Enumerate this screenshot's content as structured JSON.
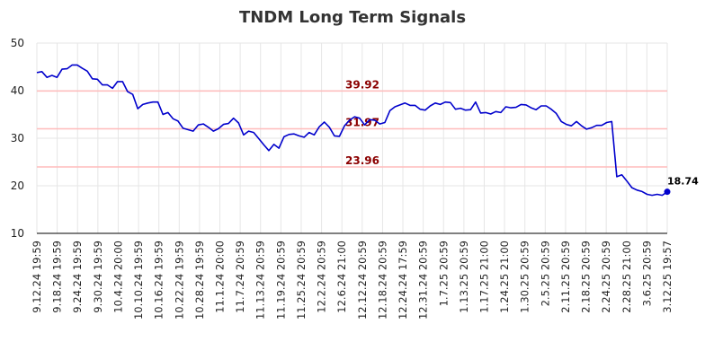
{
  "chart_data": {
    "type": "line",
    "title": "TNDM Long Term Signals",
    "xlabel": "",
    "ylabel": "",
    "ylim": [
      10,
      50
    ],
    "yticks": [
      10,
      20,
      30,
      40,
      50
    ],
    "grid": true,
    "xtick_labels": [
      "9.12.24 19:59",
      "9.18.24 19:59",
      "9.24.24 19:59",
      "9.30.24 19:59",
      "10.4.24 20:00",
      "10.10.24 19:59",
      "10.16.24 19:59",
      "10.22.24 19:59",
      "10.28.24 19:59",
      "11.1.24 20:00",
      "11.7.24 20:59",
      "11.13.24 20:59",
      "11.19.24 20:59",
      "11.25.24 20:59",
      "12.2.24 20:59",
      "12.6.24 21:00",
      "12.12.24 20:59",
      "12.18.24 20:59",
      "12.24.24 17:59",
      "12.31.24 20:59",
      "1.7.25 20:59",
      "1.13.25 20:59",
      "1.17.25 21:00",
      "1.24.25 21:00",
      "1.30.25 20:59",
      "2.5.25 20:59",
      "2.11.25 20:59",
      "2.18.25 20:59",
      "2.24.25 20:59",
      "2.28.25 21:00",
      "3.6.25 20:59",
      "3.12.25 19:57"
    ],
    "colors": {
      "line": "#0000cc",
      "signal_line": "#ffbbbb",
      "signal_text": "#8b0000",
      "grid": "#e6e6e6"
    },
    "signal_lines": [
      {
        "value": 39.92,
        "label": "39.92"
      },
      {
        "value": 31.97,
        "label": "31.97"
      },
      {
        "value": 23.96,
        "label": "23.96"
      }
    ],
    "last_value_label": "18.74",
    "series": [
      {
        "values": [
          43.8,
          44.0,
          42.8,
          43.2,
          42.8,
          44.5,
          44.6,
          45.4,
          45.4,
          44.7,
          44.1,
          42.5,
          42.4,
          41.2,
          41.2,
          40.5,
          41.9,
          41.9,
          39.8,
          39.2,
          36.2,
          37.1,
          37.4,
          37.6,
          37.6,
          35.0,
          35.4,
          34.1,
          33.6,
          32.1,
          31.8,
          31.5,
          32.8,
          33.0,
          32.3,
          31.5,
          32.0,
          32.9,
          33.1,
          34.2,
          33.2,
          30.7,
          31.5,
          31.2,
          29.9,
          28.6,
          27.4,
          28.7,
          27.9,
          30.3,
          30.8,
          30.9,
          30.5,
          30.2,
          31.2,
          30.7,
          32.4,
          33.4,
          32.3,
          30.5,
          30.4,
          32.6,
          33.8,
          34.5,
          34.2,
          32.8,
          33.9,
          33.8,
          33.0,
          33.3,
          35.8,
          36.6,
          37.0,
          37.4,
          36.9,
          36.9,
          36.1,
          35.9,
          36.8,
          37.4,
          37.1,
          37.6,
          37.5,
          36.1,
          36.3,
          35.9,
          36.0,
          37.6,
          35.3,
          35.4,
          35.1,
          35.6,
          35.4,
          36.6,
          36.4,
          36.5,
          37.1,
          37.0,
          36.4,
          36.0,
          36.8,
          36.8,
          36.1,
          35.2,
          33.5,
          32.9,
          32.6,
          33.5,
          32.6,
          31.9,
          32.2,
          32.7,
          32.7,
          33.3,
          33.5,
          21.9,
          22.3,
          21.0,
          19.6,
          19.1,
          18.8,
          18.2,
          18.0,
          18.2,
          18.0,
          18.74
        ]
      }
    ]
  }
}
